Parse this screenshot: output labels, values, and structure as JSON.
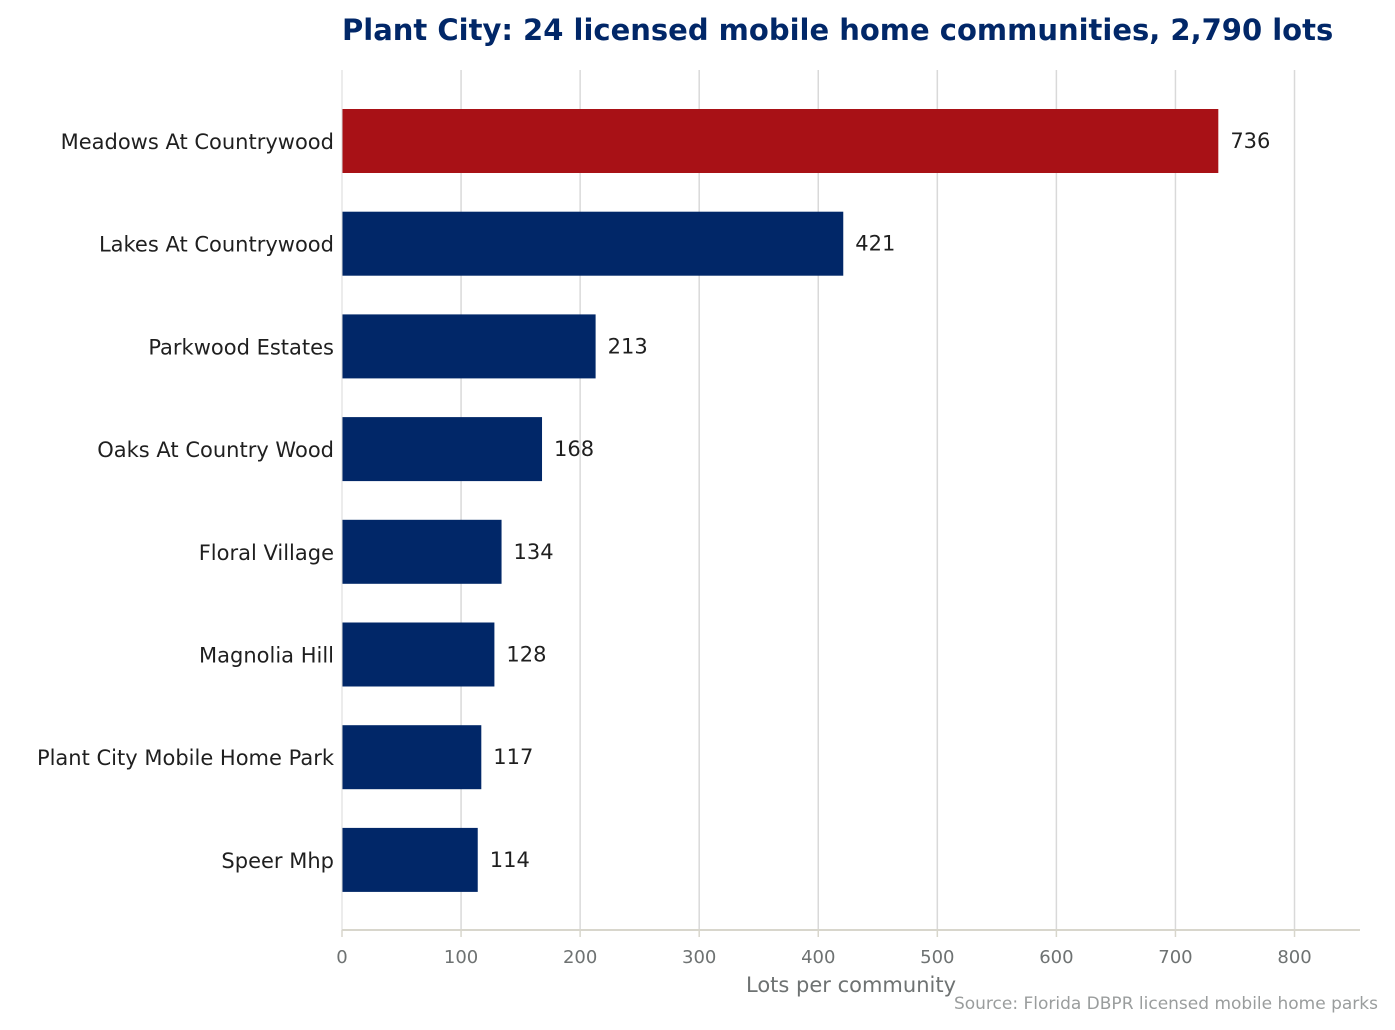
{
  "chart_data": {
    "type": "bar",
    "orientation": "horizontal",
    "title": "Plant City: 24 licensed mobile home communities, 2,790 lots",
    "xlabel": "Lots per community",
    "ylabel": "",
    "categories": [
      "Meadows At Countrywood",
      "Lakes At Countrywood",
      "Parkwood Estates",
      "Oaks At Country Wood",
      "Floral Village",
      "Magnolia Hill",
      "Plant City Mobile Home Park",
      "Speer Mhp"
    ],
    "values": [
      736,
      421,
      213,
      168,
      134,
      128,
      117,
      114
    ],
    "value_labels": [
      "736",
      "421",
      "213",
      "168",
      "134",
      "128",
      "117",
      "114"
    ],
    "xlim": [
      0,
      855
    ],
    "xticks": [
      0,
      100,
      200,
      300,
      400,
      500,
      600,
      700,
      800
    ],
    "xtick_labels": [
      "0",
      "100",
      "200",
      "300",
      "400",
      "500",
      "600",
      "700",
      "800"
    ],
    "grid": "vertical",
    "highlight_index": 0,
    "source": "Source: Florida DBPR licensed mobile home parks"
  },
  "colors": {
    "highlight_bar": "#a81116",
    "bar": "#012768",
    "title": "#012768",
    "grid": "#d9d9d9",
    "axis_line": "#d8d6cc",
    "label_text": "#1f1f1f",
    "tick_text": "#6e7272",
    "source_text": "#9a9d9d"
  }
}
